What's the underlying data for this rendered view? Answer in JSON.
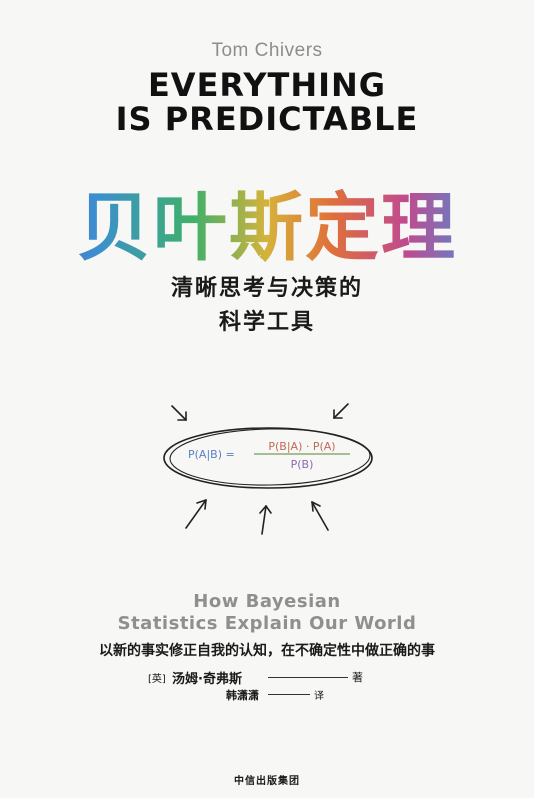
{
  "author_en": "Tom Chivers",
  "title_en": {
    "line1": "EVERYTHING",
    "line2": "IS PREDICTABLE"
  },
  "title_zh": "贝叶斯定理",
  "subtitle_zh": {
    "line1": "清晰思考与决策的",
    "line2": "科学工具"
  },
  "formula": {
    "lhs": "P(A|B) =",
    "numerator": "P(B|A) · P(A)",
    "denominator": "P(B)"
  },
  "subtitle_en": {
    "line1": "How Bayesian",
    "line2": "Statistics Explain Our World"
  },
  "tagline": "以新的事实修正自我的认知，在不确定性中做正确的事",
  "author_zh": {
    "country": "[英]",
    "name": "汤姆·奇弗斯",
    "role": "著"
  },
  "translator": {
    "name": "韩潇潇",
    "role": "译"
  },
  "publisher": "中信出版集团",
  "colors": {
    "background": "#f7f7f5",
    "grey_text": "#8d8d8d",
    "black": "#111111"
  }
}
